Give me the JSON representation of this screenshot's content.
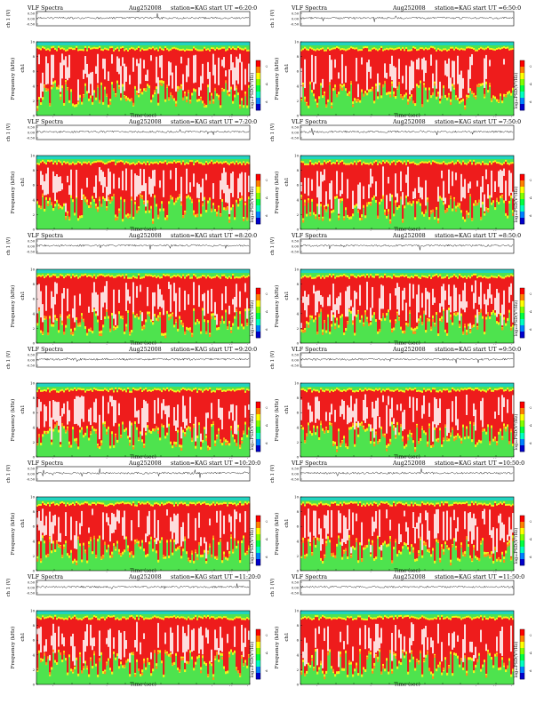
{
  "page": {
    "title": "VLF Spectra grid"
  },
  "common": {
    "label_prefix": "VLF Spectra",
    "date": "Aug252008",
    "station": "station=KAG",
    "ut_prefix": "start  UT",
    "amp_ylabel": "ch 1 (V)",
    "freq_ylabel": "Frequency (kHz)",
    "ch_label": "ch1",
    "cbar_label": "log₁₀PSD(V²/Hz)",
    "xlabel": "Time  (sec)",
    "amp_ticks": [
      "0.50",
      "0.00",
      "-0.50"
    ],
    "freq_ticks": [
      "10",
      "8",
      "6",
      "4",
      "2",
      "0"
    ],
    "time_ticks": [
      "0",
      "10",
      "20",
      "30",
      "40",
      "50",
      "60",
      "70",
      "80",
      "90",
      "100",
      "110",
      "120"
    ],
    "cbar_ticks": [
      "-2",
      "-4",
      "-6"
    ]
  },
  "chart_data": [
    {
      "type": "heatmap",
      "title": "VLF Spectra",
      "start_ut": "=6:20:0",
      "xlabel": "Time  (sec)",
      "ylabel": "Frequency (kHz)",
      "xlim": [
        0,
        120
      ],
      "ylim": [
        0,
        10
      ],
      "amp_ylim": [
        -0.5,
        0.5
      ],
      "cbar_range": [
        -7,
        -1
      ]
    },
    {
      "type": "heatmap",
      "title": "VLF Spectra",
      "start_ut": "=6:50:0",
      "xlabel": "Time  (sec)",
      "ylabel": "Frequency (kHz)",
      "xlim": [
        0,
        120
      ],
      "ylim": [
        0,
        10
      ],
      "amp_ylim": [
        -0.5,
        0.5
      ],
      "cbar_range": [
        -7,
        -1
      ]
    },
    {
      "type": "heatmap",
      "title": "VLF Spectra",
      "start_ut": "=7:20:0",
      "xlabel": "Time  (sec)",
      "ylabel": "Frequency (kHz)",
      "xlim": [
        0,
        120
      ],
      "ylim": [
        0,
        10
      ],
      "amp_ylim": [
        -0.5,
        0.5
      ],
      "cbar_range": [
        -7,
        -1
      ]
    },
    {
      "type": "heatmap",
      "title": "VLF Spectra",
      "start_ut": "=7:50:0",
      "xlabel": "Time  (sec)",
      "ylabel": "Frequency (kHz)",
      "xlim": [
        0,
        120
      ],
      "ylim": [
        0,
        10
      ],
      "amp_ylim": [
        -0.5,
        0.5
      ],
      "cbar_range": [
        -7,
        -1
      ]
    },
    {
      "type": "heatmap",
      "title": "VLF Spectra",
      "start_ut": "=8:20:0",
      "xlabel": "Time  (sec)",
      "ylabel": "Frequency (kHz)",
      "xlim": [
        0,
        120
      ],
      "ylim": [
        0,
        10
      ],
      "amp_ylim": [
        -0.5,
        0.5
      ],
      "cbar_range": [
        -7,
        -1
      ]
    },
    {
      "type": "heatmap",
      "title": "VLF Spectra",
      "start_ut": "=8:50:0",
      "xlabel": "Time  (sec)",
      "ylabel": "Frequency (kHz)",
      "xlim": [
        0,
        120
      ],
      "ylim": [
        0,
        10
      ],
      "amp_ylim": [
        -0.5,
        0.5
      ],
      "cbar_range": [
        -7,
        -1
      ]
    },
    {
      "type": "heatmap",
      "title": "VLF Spectra",
      "start_ut": "=9:20:0",
      "xlabel": "Time  (sec)",
      "ylabel": "Frequency (kHz)",
      "xlim": [
        0,
        120
      ],
      "ylim": [
        0,
        10
      ],
      "amp_ylim": [
        -0.5,
        0.5
      ],
      "cbar_range": [
        -7,
        -1
      ]
    },
    {
      "type": "heatmap",
      "title": "VLF Spectra",
      "start_ut": "=9:50:0",
      "xlabel": "Time  (sec)",
      "ylabel": "Frequency (kHz)",
      "xlim": [
        0,
        120
      ],
      "ylim": [
        0,
        10
      ],
      "amp_ylim": [
        -0.5,
        0.5
      ],
      "cbar_range": [
        -7,
        -1
      ]
    },
    {
      "type": "heatmap",
      "title": "VLF Spectra",
      "start_ut": "=10:20:0",
      "xlabel": "Time  (sec)",
      "ylabel": "Frequency (kHz)",
      "xlim": [
        0,
        120
      ],
      "ylim": [
        0,
        10
      ],
      "amp_ylim": [
        -0.5,
        0.5
      ],
      "cbar_range": [
        -7,
        -1
      ]
    },
    {
      "type": "heatmap",
      "title": "VLF Spectra",
      "start_ut": "=10:50:0",
      "xlabel": "Time  (sec)",
      "ylabel": "Frequency (kHz)",
      "xlim": [
        0,
        120
      ],
      "ylim": [
        0,
        10
      ],
      "amp_ylim": [
        -0.5,
        0.5
      ],
      "cbar_range": [
        -7,
        -1
      ]
    },
    {
      "type": "heatmap",
      "title": "VLF Spectra",
      "start_ut": "=11:20:0",
      "xlabel": "Time  (sec)",
      "ylabel": "Frequency (kHz)",
      "xlim": [
        0,
        120
      ],
      "ylim": [
        0,
        10
      ],
      "amp_ylim": [
        -0.5,
        0.5
      ],
      "cbar_range": [
        -7,
        -1
      ]
    },
    {
      "type": "heatmap",
      "title": "VLF Spectra",
      "start_ut": "=11:50:0",
      "xlabel": "Time  (sec)",
      "ylabel": "Frequency (kHz)",
      "xlim": [
        0,
        120
      ],
      "ylim": [
        0,
        10
      ],
      "amp_ylim": [
        -0.5,
        0.5
      ],
      "cbar_range": [
        -7,
        -1
      ]
    }
  ],
  "colors": {
    "cbar": [
      "#ff0000",
      "#ff7f00",
      "#ffff00",
      "#7fff00",
      "#00ff40",
      "#00ffc0",
      "#0080ff",
      "#0000cc"
    ],
    "spectrogram": {
      "white": "#ffffff",
      "red": "#ee1c1c",
      "orange": "#ff8c1a",
      "yellow": "#f2f21a",
      "green": "#4ee34e",
      "cyan": "#22d4c0"
    }
  }
}
